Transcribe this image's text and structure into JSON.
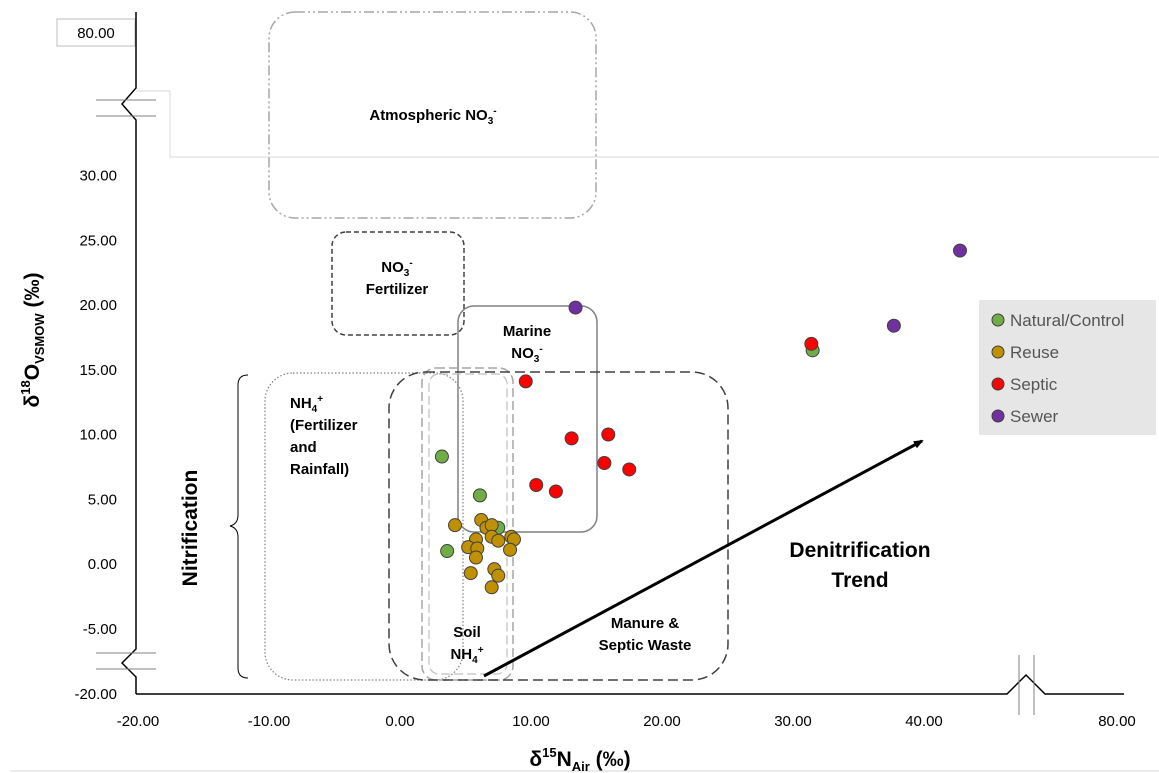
{
  "chart_data": {
    "type": "scatter",
    "title": "",
    "xlabel": {
      "main": "δ",
      "sup": "15",
      "mid": "N",
      "sub": "Air",
      "tail": " (‰)"
    },
    "ylabel": {
      "main": "δ",
      "sup": "18",
      "mid": "O",
      "sub": "VSMOW",
      "tail": "  (‰)"
    },
    "x_ticks": [
      "-20.00",
      "-10.00",
      "0.00",
      "10.00",
      "20.00",
      "30.00",
      "40.00",
      "80.00"
    ],
    "y_ticks": [
      "-20.00",
      "-5.00",
      "0.00",
      "5.00",
      "10.00",
      "15.00",
      "20.00",
      "25.00",
      "30.00",
      "80.00"
    ],
    "x_range": [
      -20,
      80
    ],
    "y_range": [
      -20,
      80
    ],
    "x_axis_break": "between 40 and 80",
    "y_axis_break": [
      "between -20 and -5",
      "between 30 and 80"
    ],
    "legend_position": "right",
    "series": [
      {
        "name": "Natural/Control",
        "color": "#70ad47",
        "points": [
          [
            3.2,
            8.3
          ],
          [
            6.1,
            5.3
          ],
          [
            3.6,
            1.0
          ],
          [
            7.5,
            2.8
          ],
          [
            31.5,
            16.5
          ]
        ]
      },
      {
        "name": "Reuse",
        "color": "#bf9000",
        "points": [
          [
            4.2,
            3.0
          ],
          [
            6.2,
            3.4
          ],
          [
            6.6,
            2.8
          ],
          [
            7.0,
            3.0
          ],
          [
            5.8,
            1.9
          ],
          [
            7.0,
            2.1
          ],
          [
            7.5,
            1.8
          ],
          [
            8.5,
            2.1
          ],
          [
            8.7,
            1.9
          ],
          [
            8.4,
            1.1
          ],
          [
            5.2,
            1.3
          ],
          [
            5.9,
            1.2
          ],
          [
            5.8,
            0.5
          ],
          [
            7.2,
            -0.4
          ],
          [
            5.4,
            -0.7
          ],
          [
            7.5,
            -0.9
          ],
          [
            7.0,
            -1.8
          ]
        ]
      },
      {
        "name": "Septic",
        "color": "#ff0000",
        "points": [
          [
            9.6,
            14.1
          ],
          [
            13.1,
            9.7
          ],
          [
            15.9,
            10.0
          ],
          [
            15.6,
            7.8
          ],
          [
            17.5,
            7.3
          ],
          [
            10.4,
            6.1
          ],
          [
            11.9,
            5.6
          ],
          [
            31.4,
            17.0
          ]
        ]
      },
      {
        "name": "Sewer",
        "color": "#7030a0",
        "points": [
          [
            13.4,
            19.8
          ],
          [
            37.7,
            18.4
          ],
          [
            47.2,
            24.2
          ]
        ]
      }
    ],
    "regions": [
      {
        "name": "Atmospheric NO3-",
        "lines": [
          {
            "text": "Atmospheric NO",
            "sub": "3",
            "sup": "-"
          }
        ]
      },
      {
        "name": "NO3- Fertilizer",
        "lines": [
          {
            "text": "NO",
            "sub": "3",
            "sup": "-"
          },
          {
            "text": "Fertilizer"
          }
        ]
      },
      {
        "name": "Marine NO3-",
        "lines": [
          {
            "text": "Marine"
          },
          {
            "text": "NO",
            "sub": "3",
            "sup": "-"
          }
        ]
      },
      {
        "name": "NH4+ (Fertilizer and Rainfall)",
        "lines": [
          {
            "text": "NH",
            "sub": "4",
            "sup": "+"
          },
          {
            "text": "(Fertilizer"
          },
          {
            "text": "and"
          },
          {
            "text": "Rainfall)"
          }
        ]
      },
      {
        "name": "Soil NH4+",
        "lines": [
          {
            "text": "Soil"
          },
          {
            "text": "NH",
            "sub": "4",
            "sup": "+"
          }
        ]
      },
      {
        "name": "Manure & Septic Waste",
        "lines": [
          {
            "text": "Manure &"
          },
          {
            "text": "Septic Waste"
          }
        ]
      }
    ],
    "annotations": {
      "nitrification": "Nitrification",
      "denitrification": [
        "Denitrification",
        "Trend"
      ]
    },
    "y_break_label": "80.00"
  }
}
